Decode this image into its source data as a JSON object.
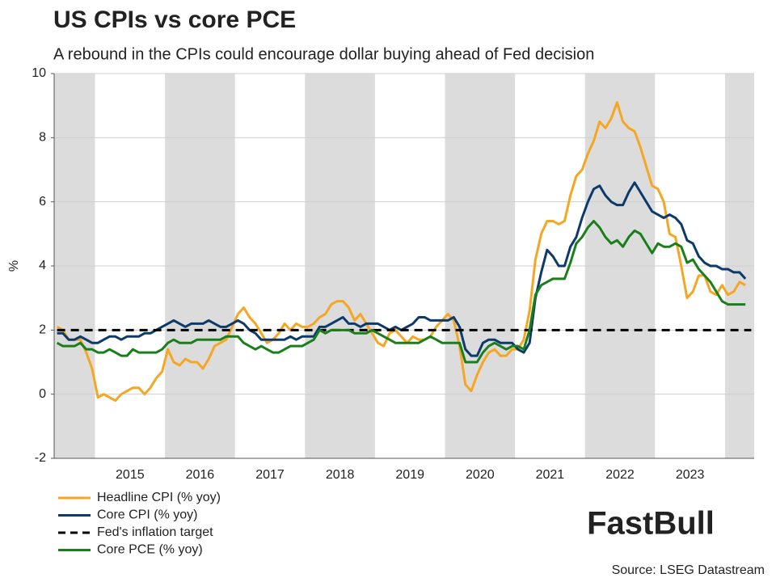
{
  "chart_data": {
    "type": "line",
    "title": "US CPIs vs core PCE",
    "subtitle": "A rebound in the CPIs could encourage dollar buying ahead of Fed decision",
    "y_label": "%",
    "source": "Source: LSEG Datastream",
    "watermark": "FastBull",
    "categories": [
      null,
      null,
      null,
      null,
      null,
      null,
      null,
      null,
      null,
      null,
      null,
      null,
      null,
      "2015",
      null,
      null,
      null,
      null,
      null,
      null,
      null,
      null,
      null,
      null,
      null,
      "2016",
      null,
      null,
      null,
      null,
      null,
      null,
      null,
      null,
      null,
      null,
      null,
      "2017",
      null,
      null,
      null,
      null,
      null,
      null,
      null,
      null,
      null,
      null,
      null,
      "2018",
      null,
      null,
      null,
      null,
      null,
      null,
      null,
      null,
      null,
      null,
      null,
      "2019",
      null,
      null,
      null,
      null,
      null,
      null,
      null,
      null,
      null,
      null,
      null,
      "2020",
      null,
      null,
      null,
      null,
      null,
      null,
      null,
      null,
      null,
      null,
      null,
      "2021",
      null,
      null,
      null,
      null,
      null,
      null,
      null,
      null,
      null,
      null,
      null,
      "2022",
      null,
      null,
      null,
      null,
      null,
      null,
      null,
      null,
      null,
      null,
      null,
      "2023",
      null,
      null,
      null,
      null,
      null,
      null,
      null,
      null,
      null,
      null
    ],
    "ylim": [
      -2,
      10
    ],
    "yticks": [
      -2,
      0,
      2,
      4,
      6,
      8,
      10
    ],
    "series": [
      {
        "name": "Headline CPI (% yoy)",
        "color": "#f5a623",
        "style": "solid",
        "values": [
          2.1,
          2.0,
          1.7,
          1.7,
          1.7,
          1.3,
          0.8,
          -0.1,
          0.0,
          -0.1,
          -0.2,
          0.0,
          0.1,
          0.2,
          0.2,
          0.0,
          0.2,
          0.5,
          0.7,
          1.4,
          1.0,
          0.9,
          1.1,
          1.0,
          1.0,
          0.8,
          1.1,
          1.5,
          1.6,
          1.7,
          2.1,
          2.5,
          2.7,
          2.4,
          2.2,
          1.9,
          1.6,
          1.7,
          1.9,
          2.2,
          2.0,
          2.2,
          2.1,
          2.1,
          2.2,
          2.4,
          2.5,
          2.8,
          2.9,
          2.9,
          2.7,
          2.3,
          2.5,
          2.2,
          1.9,
          1.6,
          1.5,
          1.9,
          2.0,
          1.8,
          1.6,
          1.8,
          1.7,
          1.7,
          1.8,
          2.1,
          2.3,
          2.5,
          2.3,
          1.5,
          0.3,
          0.1,
          0.6,
          1.0,
          1.3,
          1.4,
          1.2,
          1.2,
          1.4,
          1.4,
          1.7,
          2.6,
          4.2,
          5.0,
          5.4,
          5.4,
          5.3,
          5.4,
          6.2,
          6.8,
          7.0,
          7.5,
          7.9,
          8.5,
          8.3,
          8.6,
          9.1,
          8.5,
          8.3,
          8.2,
          7.7,
          7.1,
          6.5,
          6.4,
          6.0,
          5.0,
          4.9,
          4.0,
          3.0,
          3.2,
          3.7,
          3.7,
          3.2,
          3.1,
          3.4,
          3.1,
          3.2,
          3.5,
          3.4,
          null
        ]
      },
      {
        "name": "Core CPI (% yoy)",
        "color": "#0b3a6b",
        "style": "solid",
        "values": [
          1.9,
          1.9,
          1.7,
          1.7,
          1.8,
          1.7,
          1.6,
          1.6,
          1.7,
          1.8,
          1.8,
          1.7,
          1.8,
          1.8,
          1.8,
          1.9,
          1.9,
          2.0,
          2.1,
          2.2,
          2.3,
          2.2,
          2.1,
          2.2,
          2.2,
          2.2,
          2.3,
          2.2,
          2.1,
          2.1,
          2.2,
          2.3,
          2.2,
          2.0,
          1.9,
          1.7,
          1.7,
          1.7,
          1.7,
          1.7,
          1.8,
          1.7,
          1.8,
          1.8,
          1.8,
          2.1,
          2.1,
          2.2,
          2.3,
          2.4,
          2.2,
          2.2,
          2.1,
          2.2,
          2.2,
          2.2,
          2.1,
          2.0,
          2.1,
          2.0,
          2.1,
          2.2,
          2.4,
          2.4,
          2.3,
          2.3,
          2.3,
          2.3,
          2.4,
          2.1,
          1.4,
          1.2,
          1.2,
          1.6,
          1.7,
          1.7,
          1.6,
          1.6,
          1.6,
          1.4,
          1.3,
          1.6,
          3.0,
          3.8,
          4.5,
          4.3,
          4.0,
          4.0,
          4.6,
          4.9,
          5.5,
          6.0,
          6.4,
          6.5,
          6.2,
          6.0,
          5.9,
          5.9,
          6.3,
          6.6,
          6.3,
          6.0,
          5.7,
          5.6,
          5.5,
          5.6,
          5.5,
          5.3,
          4.8,
          4.7,
          4.3,
          4.1,
          4.0,
          4.0,
          3.9,
          3.9,
          3.8,
          3.8,
          3.6,
          null
        ]
      },
      {
        "name": "Fed's inflation target",
        "color": "#000000",
        "style": "dashed",
        "values": [
          2,
          2,
          2,
          2,
          2,
          2,
          2,
          2,
          2,
          2,
          2,
          2,
          2,
          2,
          2,
          2,
          2,
          2,
          2,
          2,
          2,
          2,
          2,
          2,
          2,
          2,
          2,
          2,
          2,
          2,
          2,
          2,
          2,
          2,
          2,
          2,
          2,
          2,
          2,
          2,
          2,
          2,
          2,
          2,
          2,
          2,
          2,
          2,
          2,
          2,
          2,
          2,
          2,
          2,
          2,
          2,
          2,
          2,
          2,
          2,
          2,
          2,
          2,
          2,
          2,
          2,
          2,
          2,
          2,
          2,
          2,
          2,
          2,
          2,
          2,
          2,
          2,
          2,
          2,
          2,
          2,
          2,
          2,
          2,
          2,
          2,
          2,
          2,
          2,
          2,
          2,
          2,
          2,
          2,
          2,
          2,
          2,
          2,
          2,
          2,
          2,
          2,
          2,
          2,
          2,
          2,
          2,
          2,
          2,
          2,
          2,
          2,
          2,
          2,
          2,
          2,
          2,
          2,
          2,
          2
        ]
      },
      {
        "name": "Core PCE (% yoy)",
        "color": "#1a7f1a",
        "style": "solid",
        "values": [
          1.6,
          1.5,
          1.5,
          1.5,
          1.6,
          1.4,
          1.4,
          1.3,
          1.3,
          1.4,
          1.3,
          1.2,
          1.2,
          1.4,
          1.3,
          1.3,
          1.3,
          1.3,
          1.4,
          1.6,
          1.7,
          1.6,
          1.6,
          1.6,
          1.7,
          1.7,
          1.7,
          1.7,
          1.7,
          1.8,
          1.8,
          1.8,
          1.6,
          1.5,
          1.4,
          1.5,
          1.4,
          1.3,
          1.3,
          1.4,
          1.5,
          1.5,
          1.5,
          1.6,
          1.7,
          2.0,
          1.9,
          2.0,
          2.0,
          2.0,
          2.0,
          1.9,
          1.9,
          1.9,
          2.0,
          1.9,
          1.8,
          1.7,
          1.6,
          1.6,
          1.6,
          1.6,
          1.6,
          1.7,
          1.8,
          1.7,
          1.6,
          1.6,
          1.6,
          1.6,
          1.0,
          1.0,
          1.0,
          1.3,
          1.5,
          1.6,
          1.5,
          1.4,
          1.5,
          1.5,
          1.4,
          2.0,
          3.1,
          3.4,
          3.5,
          3.6,
          3.6,
          3.6,
          4.1,
          4.7,
          4.9,
          5.2,
          5.4,
          5.2,
          4.9,
          4.7,
          4.8,
          4.6,
          4.9,
          5.1,
          5.0,
          4.7,
          4.4,
          4.7,
          4.6,
          4.6,
          4.7,
          4.6,
          4.1,
          4.2,
          3.9,
          3.7,
          3.5,
          3.2,
          2.9,
          2.8,
          2.8,
          2.8,
          2.8,
          null
        ]
      }
    ]
  }
}
